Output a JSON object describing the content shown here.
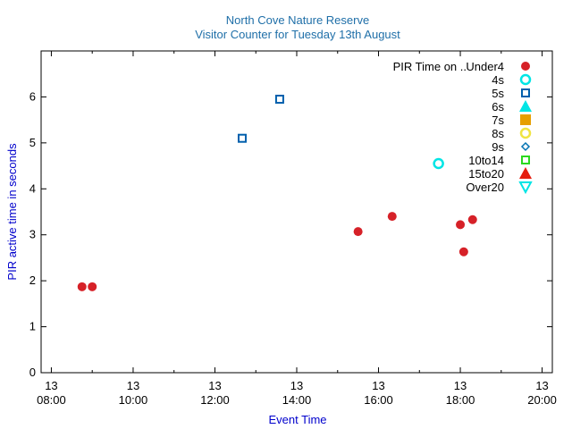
{
  "chart_data": {
    "type": "scatter",
    "title": "North Cove Nature Reserve",
    "subtitle": "Visitor Counter for Tuesday 13th August",
    "xlabel": "Event Time",
    "ylabel": "PIR active time in seconds",
    "xlim": [
      "07:45",
      "20:15"
    ],
    "ylim": [
      0,
      7
    ],
    "x_ticks": [
      {
        "time": "08:00",
        "day": "13",
        "label": "08:00"
      },
      {
        "time": "10:00",
        "day": "13",
        "label": "10:00"
      },
      {
        "time": "12:00",
        "day": "13",
        "label": "12:00"
      },
      {
        "time": "14:00",
        "day": "13",
        "label": "14:00"
      },
      {
        "time": "16:00",
        "day": "13",
        "label": "16:00"
      },
      {
        "time": "18:00",
        "day": "13",
        "label": "18:00"
      },
      {
        "time": "20:00",
        "day": "13",
        "label": "20:00"
      }
    ],
    "y_ticks": [
      0,
      1,
      2,
      3,
      4,
      5,
      6
    ],
    "grid": false,
    "legend_position": "top-right",
    "legend_title": "PIR Time on ..",
    "series": [
      {
        "name": "Under4",
        "marker": "circle-filled",
        "color": "#d62128",
        "points": [
          {
            "x": "08:45",
            "y": 1.87
          },
          {
            "x": "09:00",
            "y": 1.87
          },
          {
            "x": "15:30",
            "y": 3.07
          },
          {
            "x": "16:20",
            "y": 3.4
          },
          {
            "x": "18:00",
            "y": 3.22
          },
          {
            "x": "18:05",
            "y": 2.63
          },
          {
            "x": "18:18",
            "y": 3.33
          }
        ]
      },
      {
        "name": "4s",
        "marker": "circle-open",
        "color": "#00e5e5",
        "points": [
          {
            "x": "17:28",
            "y": 4.55
          }
        ]
      },
      {
        "name": "5s",
        "marker": "square-open",
        "color": "#0060ad",
        "points": [
          {
            "x": "12:40",
            "y": 5.1
          },
          {
            "x": "13:35",
            "y": 5.95
          }
        ]
      },
      {
        "name": "6s",
        "marker": "triangle-up-filled",
        "color": "#00e5e5",
        "points": []
      },
      {
        "name": "7s",
        "marker": "square-filled",
        "color": "#e69f00",
        "points": []
      },
      {
        "name": "8s",
        "marker": "circle-open",
        "color": "#f0e442",
        "points": []
      },
      {
        "name": "9s",
        "marker": "diamond-open",
        "color": "#0072b2",
        "points": []
      },
      {
        "name": "10to14",
        "marker": "square-open",
        "color": "#2bd91e",
        "points": []
      },
      {
        "name": "15to20",
        "marker": "triangle-up-filled",
        "color": "#e51e10",
        "points": []
      },
      {
        "name": "Over20",
        "marker": "triangle-down-open",
        "color": "#00e5e5",
        "points": []
      }
    ]
  },
  "colors": {
    "title": "#1f6fa8",
    "axis_label": "#0000cc",
    "axis": "#000000"
  }
}
